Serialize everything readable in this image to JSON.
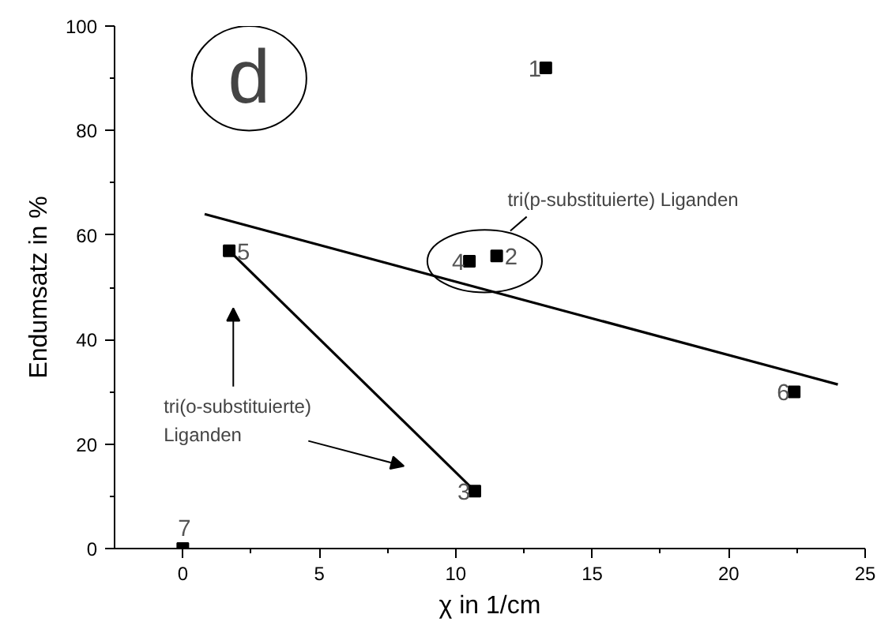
{
  "chart_data": {
    "type": "scatter",
    "xlabel": "χ in 1/cm",
    "ylabel": "Endumsatz in %",
    "xlim": [
      -2.5,
      25
    ],
    "ylim": [
      0,
      100
    ],
    "xticks": [
      0,
      5,
      10,
      15,
      20,
      25
    ],
    "yticks": [
      0,
      20,
      40,
      60,
      80,
      100
    ],
    "grid": false,
    "series": [
      {
        "marker": "square",
        "color": "#000000",
        "x": [
          13.3,
          11.5,
          10.7,
          10.5,
          1.7,
          22.4,
          0
        ],
        "values": [
          92,
          56,
          11,
          55,
          57,
          30,
          0
        ]
      },
      {
        "type": "line",
        "color": "#000000",
        "x": [
          0.8,
          24
        ],
        "values": [
          64,
          31.4
        ]
      },
      {
        "type": "line",
        "color": "#000000",
        "x": [
          1.7,
          10.7
        ],
        "values": [
          57,
          11
        ]
      }
    ],
    "annotations": [
      {
        "text": "1",
        "x": 13.3,
        "y": 92
      },
      {
        "text": "2",
        "x": 11.5,
        "y": 56
      },
      {
        "text": "3",
        "x": 10.7,
        "y": 11
      },
      {
        "text": "4",
        "x": 10.5,
        "y": 55
      },
      {
        "text": "5",
        "x": 1.7,
        "y": 57
      },
      {
        "text": "6",
        "x": 22.4,
        "y": 30
      },
      {
        "text": "7",
        "x": 0,
        "y": 0
      },
      "d",
      "tri(p-substituierte) Liganden",
      "tri(o-substituierte) Liganden"
    ]
  }
}
